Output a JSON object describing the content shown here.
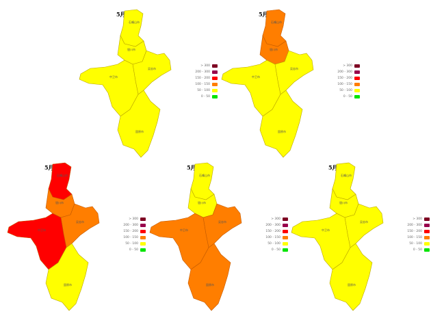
{
  "legend": {
    "items": [
      {
        "label": "> 300",
        "color": "#7e0023"
      },
      {
        "label": "200 - 300",
        "color": "#99004c"
      },
      {
        "label": "150 - 200",
        "color": "#ff0000"
      },
      {
        "label": "100 - 150",
        "color": "#ff7e00"
      },
      {
        "label": "50 - 100",
        "color": "#ffff00"
      },
      {
        "label": "0 - 50",
        "color": "#00e400"
      }
    ]
  },
  "cities": {
    "shizuishan": "石嘴山市",
    "yinchuan": "银川市",
    "wuzhong": "吴忠市",
    "zhongwei": "中卫市",
    "guyuan": "固原市"
  },
  "maps": [
    {
      "date": "5月11日",
      "levels": {
        "shizuishan": "50 - 100",
        "yinchuan": "50 - 100",
        "wuzhong": "50 - 100",
        "zhongwei": "50 - 100",
        "guyuan": "50 - 100"
      }
    },
    {
      "date": "5月12日",
      "levels": {
        "shizuishan": "100 - 150",
        "yinchuan": "100 - 150",
        "wuzhong": "50 - 100",
        "zhongwei": "50 - 100",
        "guyuan": "50 - 100"
      }
    },
    {
      "date": "5月13日",
      "levels": {
        "shizuishan": "150 - 200",
        "yinchuan": "100 - 150",
        "wuzhong": "100 - 150",
        "zhongwei": "150 - 200",
        "guyuan": "50 - 100"
      }
    },
    {
      "date": "5月14日",
      "levels": {
        "shizuishan": "50 - 100",
        "yinchuan": "50 - 100",
        "wuzhong": "100 - 150",
        "zhongwei": "100 - 150",
        "guyuan": "100 - 150"
      }
    },
    {
      "date": "5月15日",
      "levels": {
        "shizuishan": "50 - 100",
        "yinchuan": "50 - 100",
        "wuzhong": "50 - 100",
        "zhongwei": "50 - 100",
        "guyuan": "50 - 100"
      }
    }
  ]
}
